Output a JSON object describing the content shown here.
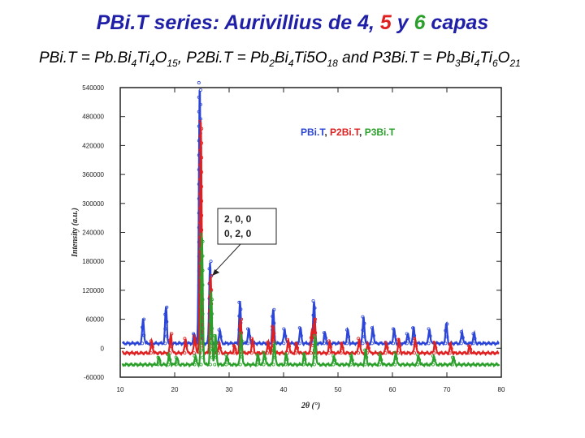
{
  "title": {
    "prefix": "PBi.T series: Aurivillius de 4, ",
    "n5": "5",
    "mid": " y ",
    "n6": "6",
    "suffix": " capas",
    "colors": {
      "base": "#1f1fa8",
      "n5": "#e02020",
      "n6": "#2aa02a"
    }
  },
  "subtitle": {
    "p1": "PBi.T = Pb.Bi",
    "s1": "4",
    "p2": "Ti",
    "s2": "4",
    "p3": "O",
    "s3": "15",
    "p4": ", P2Bi.T = Pb",
    "s4": "2",
    "p5": "Bi",
    "s5": "4",
    "p6": "Ti5O",
    "s6": "18",
    "p7": " and P3Bi.T = Pb",
    "s7": "3",
    "p8": "Bi",
    "s8": "4",
    "p9": "Ti",
    "s9": "6",
    "p10": "O",
    "s10": "21"
  },
  "chart_data": {
    "type": "line",
    "xlabel": "2θ (°)",
    "ylabel": "Intensity (a.u.)",
    "xlim": [
      10,
      80
    ],
    "ylim": [
      -60000,
      540000
    ],
    "x_ticks": [
      "10",
      "20",
      "30",
      "40",
      "50",
      "60",
      "70",
      "80"
    ],
    "y_ticks": [
      "-60000",
      "0",
      "60000",
      "120000",
      "180000",
      "240000",
      "300000",
      "360000",
      "420000",
      "480000",
      "540000"
    ],
    "legend": {
      "placement": "top-right",
      "entries": [
        {
          "text": "PBi.T",
          "color": "#2b45d8"
        },
        {
          "text": ", ",
          "color": "#222222"
        },
        {
          "text": "P2Bi.T",
          "color": "#e02020"
        },
        {
          "text": ", ",
          "color": "#222222"
        },
        {
          "text": "P3Bi.T",
          "color": "#2aa02a"
        }
      ]
    },
    "annotation": {
      "lines": [
        "2, 0, 0",
        "0, 2, 0"
      ],
      "points_to_x": 26.6
    },
    "series": [
      {
        "color": "#2b45d8",
        "baseline": 10000,
        "peaks": [
          [
            14.2,
            50000
          ],
          [
            18.4,
            75000
          ],
          [
            23.6,
            20000
          ],
          [
            24.6,
            540000
          ],
          [
            26.5,
            170000
          ],
          [
            28.3,
            28000
          ],
          [
            32.0,
            85000
          ],
          [
            33.6,
            30000
          ],
          [
            38.1,
            70000
          ],
          [
            40.2,
            30000
          ],
          [
            43.1,
            32000
          ],
          [
            45.6,
            88000
          ],
          [
            47.6,
            22000
          ],
          [
            51.8,
            28000
          ],
          [
            54.7,
            55000
          ],
          [
            56.4,
            32000
          ],
          [
            60.3,
            30000
          ],
          [
            62.8,
            20000
          ],
          [
            63.9,
            32000
          ],
          [
            66.8,
            30000
          ],
          [
            69.9,
            40000
          ],
          [
            72.8,
            24000
          ],
          [
            75.0,
            20000
          ]
        ]
      },
      {
        "color": "#e02020",
        "baseline": -10000,
        "peaks": [
          [
            15.8,
            25000
          ],
          [
            19.3,
            40000
          ],
          [
            22.0,
            30000
          ],
          [
            23.7,
            35000
          ],
          [
            24.8,
            480000
          ],
          [
            26.6,
            160000
          ],
          [
            28.2,
            20000
          ],
          [
            31.0,
            15000
          ],
          [
            32.1,
            70000
          ],
          [
            34.3,
            30000
          ],
          [
            37.2,
            22000
          ],
          [
            38.1,
            55000
          ],
          [
            40.9,
            28000
          ],
          [
            42.4,
            20000
          ],
          [
            45.2,
            48000
          ],
          [
            45.7,
            70000
          ],
          [
            48.5,
            25000
          ],
          [
            50.7,
            20000
          ],
          [
            53.9,
            30000
          ],
          [
            55.5,
            20000
          ],
          [
            58.9,
            22000
          ],
          [
            61.2,
            28000
          ],
          [
            64.2,
            30000
          ],
          [
            67.8,
            22000
          ],
          [
            70.7,
            18000
          ],
          [
            74.2,
            15000
          ]
        ]
      },
      {
        "color": "#2aa02a",
        "baseline": -34000,
        "peaks": [
          [
            17.1,
            15000
          ],
          [
            19.0,
            20000
          ],
          [
            20.4,
            15000
          ],
          [
            23.8,
            18000
          ],
          [
            25.0,
            270000
          ],
          [
            26.7,
            150000
          ],
          [
            27.5,
            60000
          ],
          [
            29.6,
            20000
          ],
          [
            32.2,
            65000
          ],
          [
            35.3,
            20000
          ],
          [
            36.5,
            25000
          ],
          [
            38.3,
            45000
          ],
          [
            40.5,
            22000
          ],
          [
            43.8,
            22000
          ],
          [
            45.8,
            60000
          ],
          [
            49.3,
            18000
          ],
          [
            52.5,
            18000
          ],
          [
            55.1,
            30000
          ],
          [
            57.8,
            20000
          ],
          [
            60.6,
            25000
          ],
          [
            64.8,
            20000
          ],
          [
            67.6,
            18000
          ],
          [
            71.2,
            15000
          ]
        ]
      }
    ]
  }
}
